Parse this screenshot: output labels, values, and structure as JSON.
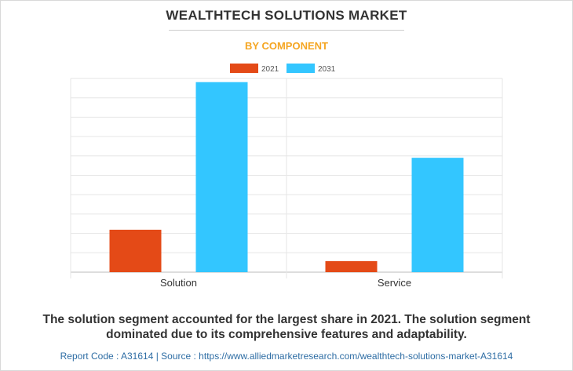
{
  "header": {
    "title": "WEALTHTECH SOLUTIONS MARKET",
    "subtitle": "BY COMPONENT"
  },
  "chart_data": {
    "type": "bar",
    "categories": [
      "Solution",
      "Service"
    ],
    "series": [
      {
        "name": "2021",
        "color": "#e44a17",
        "values": [
          2.3,
          0.6
        ]
      },
      {
        "name": "2031",
        "color": "#33c6ff",
        "values": [
          10.3,
          6.2
        ]
      }
    ],
    "ylim": [
      0,
      10.5
    ],
    "grid": true,
    "legend": "top-center",
    "xlabel": "",
    "ylabel": ""
  },
  "footer": {
    "caption": "The solution segment accounted for the largest share in 2021. The solution segment dominated due to its comprehensive features and adaptability.",
    "source": "Report Code : A31614  |  Source : https://www.alliedmarketresearch.com/wealthtech-solutions-market-A31614"
  }
}
